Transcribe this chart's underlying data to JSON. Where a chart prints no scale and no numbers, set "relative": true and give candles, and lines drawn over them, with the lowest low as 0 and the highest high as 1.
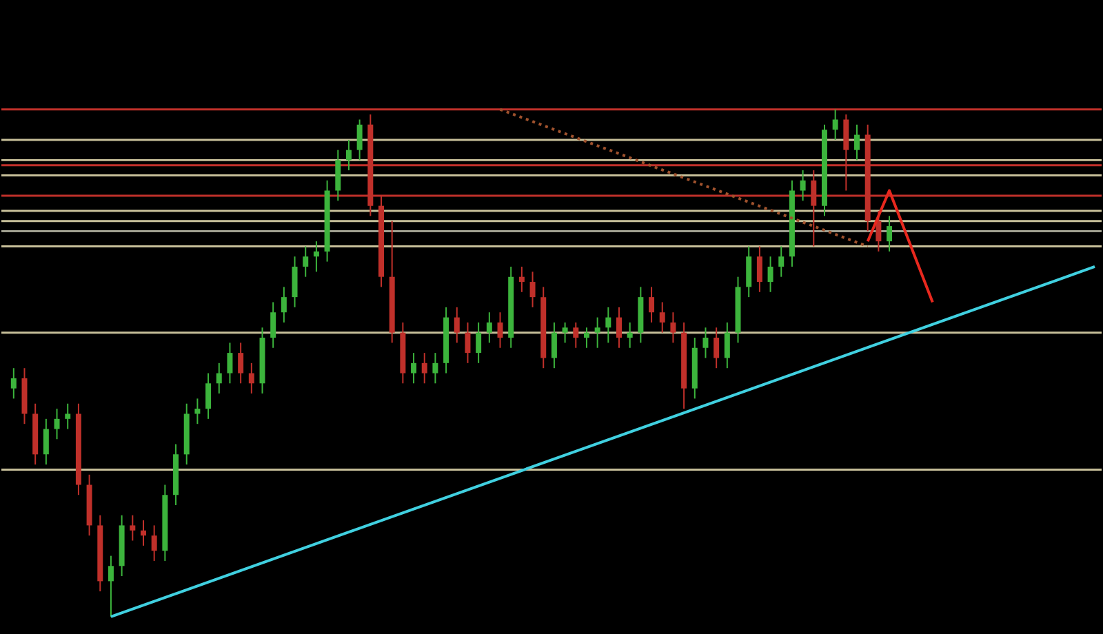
{
  "chart_data": {
    "type": "candlestick",
    "relative": true,
    "tick_labels": false,
    "categories": [
      null,
      null,
      null,
      null,
      null,
      null,
      null,
      null,
      null,
      null,
      null,
      null,
      null,
      null,
      null,
      null,
      null,
      null,
      null,
      null,
      null,
      null,
      null,
      null,
      null,
      null,
      null,
      null,
      null,
      null,
      null,
      null,
      null,
      null,
      null,
      null,
      null,
      null,
      null,
      null,
      null,
      null,
      null,
      null,
      null,
      null,
      null,
      null,
      null,
      null,
      null,
      null,
      null,
      null,
      null,
      null,
      null,
      null,
      null,
      null,
      null,
      null,
      null,
      null,
      null,
      null,
      null,
      null,
      null,
      null,
      null,
      null,
      null,
      null,
      null,
      null,
      null,
      null,
      null,
      null,
      null,
      null,
      null,
      null,
      null,
      null,
      null,
      null,
      null,
      null,
      null,
      null,
      null,
      null,
      null,
      null,
      null,
      null,
      null,
      null,
      null
    ],
    "ohlc": [
      [
        0.45,
        0.49,
        0.43,
        0.47
      ],
      [
        0.47,
        0.49,
        0.38,
        0.4
      ],
      [
        0.4,
        0.42,
        0.3,
        0.32
      ],
      [
        0.32,
        0.39,
        0.3,
        0.37
      ],
      [
        0.37,
        0.41,
        0.35,
        0.39
      ],
      [
        0.39,
        0.42,
        0.37,
        0.4
      ],
      [
        0.4,
        0.42,
        0.24,
        0.26
      ],
      [
        0.26,
        0.28,
        0.16,
        0.18
      ],
      [
        0.18,
        0.2,
        0.05,
        0.07
      ],
      [
        0.07,
        0.12,
        0,
        0.1
      ],
      [
        0.1,
        0.2,
        0.08,
        0.18
      ],
      [
        0.18,
        0.2,
        0.15,
        0.17
      ],
      [
        0.17,
        0.19,
        0.14,
        0.16
      ],
      [
        0.16,
        0.18,
        0.11,
        0.13
      ],
      [
        0.13,
        0.26,
        0.11,
        0.24
      ],
      [
        0.24,
        0.34,
        0.22,
        0.32
      ],
      [
        0.32,
        0.42,
        0.3,
        0.4
      ],
      [
        0.4,
        0.43,
        0.38,
        0.41
      ],
      [
        0.41,
        0.48,
        0.39,
        0.46
      ],
      [
        0.46,
        0.5,
        0.44,
        0.48
      ],
      [
        0.48,
        0.54,
        0.46,
        0.52
      ],
      [
        0.52,
        0.54,
        0.46,
        0.48
      ],
      [
        0.48,
        0.5,
        0.44,
        0.46
      ],
      [
        0.46,
        0.57,
        0.44,
        0.55
      ],
      [
        0.55,
        0.62,
        0.53,
        0.6
      ],
      [
        0.6,
        0.65,
        0.58,
        0.63
      ],
      [
        0.63,
        0.71,
        0.61,
        0.69
      ],
      [
        0.69,
        0.73,
        0.67,
        0.71
      ],
      [
        0.71,
        0.74,
        0.68,
        0.72
      ],
      [
        0.72,
        0.86,
        0.7,
        0.84
      ],
      [
        0.84,
        0.92,
        0.82,
        0.9
      ],
      [
        0.9,
        0.94,
        0.88,
        0.92
      ],
      [
        0.92,
        0.98,
        0.9,
        0.97
      ],
      [
        0.97,
        0.99,
        0.79,
        0.81
      ],
      [
        0.81,
        0.83,
        0.65,
        0.67
      ],
      [
        0.67,
        0.78,
        0.54,
        0.56
      ],
      [
        0.56,
        0.58,
        0.46,
        0.48
      ],
      [
        0.48,
        0.52,
        0.46,
        0.5
      ],
      [
        0.5,
        0.52,
        0.46,
        0.48
      ],
      [
        0.48,
        0.52,
        0.46,
        0.5
      ],
      [
        0.5,
        0.61,
        0.48,
        0.59
      ],
      [
        0.59,
        0.61,
        0.54,
        0.56
      ],
      [
        0.56,
        0.58,
        0.5,
        0.52
      ],
      [
        0.52,
        0.58,
        0.5,
        0.56
      ],
      [
        0.56,
        0.6,
        0.54,
        0.58
      ],
      [
        0.58,
        0.6,
        0.53,
        0.55
      ],
      [
        0.55,
        0.69,
        0.53,
        0.67
      ],
      [
        0.67,
        0.69,
        0.64,
        0.66
      ],
      [
        0.66,
        0.68,
        0.61,
        0.63
      ],
      [
        0.63,
        0.65,
        0.49,
        0.51
      ],
      [
        0.51,
        0.58,
        0.49,
        0.56
      ],
      [
        0.56,
        0.58,
        0.54,
        0.57
      ],
      [
        0.57,
        0.58,
        0.53,
        0.55
      ],
      [
        0.55,
        0.57,
        0.53,
        0.56
      ],
      [
        0.56,
        0.59,
        0.53,
        0.57
      ],
      [
        0.57,
        0.61,
        0.54,
        0.59
      ],
      [
        0.59,
        0.61,
        0.53,
        0.55
      ],
      [
        0.55,
        0.58,
        0.53,
        0.56
      ],
      [
        0.56,
        0.65,
        0.54,
        0.63
      ],
      [
        0.63,
        0.65,
        0.58,
        0.6
      ],
      [
        0.6,
        0.62,
        0.56,
        0.58
      ],
      [
        0.58,
        0.6,
        0.54,
        0.56
      ],
      [
        0.56,
        0.58,
        0.41,
        0.45
      ],
      [
        0.45,
        0.55,
        0.43,
        0.53
      ],
      [
        0.53,
        0.57,
        0.51,
        0.55
      ],
      [
        0.55,
        0.57,
        0.49,
        0.51
      ],
      [
        0.51,
        0.58,
        0.49,
        0.56
      ],
      [
        0.56,
        0.67,
        0.54,
        0.65
      ],
      [
        0.65,
        0.73,
        0.63,
        0.71
      ],
      [
        0.71,
        0.73,
        0.64,
        0.66
      ],
      [
        0.66,
        0.71,
        0.64,
        0.69
      ],
      [
        0.69,
        0.73,
        0.67,
        0.71
      ],
      [
        0.71,
        0.86,
        0.69,
        0.84
      ],
      [
        0.84,
        0.88,
        0.82,
        0.86
      ],
      [
        0.86,
        0.88,
        0.73,
        0.81
      ],
      [
        0.81,
        0.97,
        0.79,
        0.96
      ],
      [
        0.96,
        1,
        0.94,
        0.98
      ],
      [
        0.98,
        0.99,
        0.84,
        0.92
      ],
      [
        0.92,
        0.97,
        0.9,
        0.95
      ],
      [
        0.95,
        0.97,
        0.76,
        0.78
      ],
      [
        0.78,
        0.8,
        0.72,
        0.74
      ],
      [
        0.74,
        0.79,
        0.72,
        0.77
      ],
      null,
      null,
      null,
      null,
      null,
      null,
      null,
      null,
      null,
      null,
      null,
      null,
      null,
      null,
      null,
      null,
      null,
      null,
      null
    ],
    "series": [
      {
        "type": "line",
        "color": "#40d0e0",
        "marker": "none",
        "line_style": "solid",
        "values": [
          null,
          null,
          null,
          null,
          null,
          null,
          null,
          null,
          null,
          0,
          null,
          null,
          null,
          null,
          null,
          null,
          null,
          null,
          null,
          null,
          null,
          null,
          null,
          null,
          null,
          null,
          null,
          null,
          null,
          null,
          null,
          null,
          null,
          null,
          null,
          null,
          null,
          null,
          null,
          null,
          null,
          null,
          null,
          null,
          null,
          null,
          null,
          null,
          null,
          null,
          null,
          null,
          null,
          null,
          null,
          null,
          null,
          null,
          null,
          null,
          null,
          null,
          null,
          null,
          null,
          null,
          null,
          null,
          null,
          null,
          null,
          null,
          null,
          null,
          null,
          null,
          null,
          null,
          null,
          null,
          null,
          null,
          null,
          null,
          null,
          null,
          null,
          null,
          null,
          null,
          null,
          null,
          null,
          null,
          null,
          null,
          null,
          null,
          null,
          null,
          0.69
        ]
      },
      {
        "type": "line",
        "color": "#a0522d",
        "marker": "none",
        "line_style": "dotted",
        "values": [
          null,
          null,
          null,
          null,
          null,
          null,
          null,
          null,
          null,
          null,
          null,
          null,
          null,
          null,
          null,
          null,
          null,
          null,
          null,
          null,
          null,
          null,
          null,
          null,
          null,
          null,
          null,
          null,
          null,
          null,
          null,
          null,
          null,
          null,
          null,
          null,
          null,
          null,
          null,
          null,
          null,
          null,
          null,
          null,
          null,
          1.0,
          null,
          null,
          null,
          null,
          null,
          null,
          null,
          null,
          null,
          null,
          null,
          null,
          null,
          null,
          null,
          null,
          null,
          null,
          null,
          null,
          null,
          null,
          null,
          null,
          null,
          null,
          null,
          null,
          null,
          null,
          null,
          null,
          null,
          0.73,
          null,
          null,
          null,
          null,
          null,
          null,
          null,
          null,
          null,
          null,
          null,
          null,
          null,
          null,
          null,
          null,
          null,
          null,
          null,
          null,
          null
        ]
      },
      {
        "type": "line",
        "color": "#e8281e",
        "marker": "none",
        "line_style": "solid",
        "values": [
          null,
          null,
          null,
          null,
          null,
          null,
          null,
          null,
          null,
          null,
          null,
          null,
          null,
          null,
          null,
          null,
          null,
          null,
          null,
          null,
          null,
          null,
          null,
          null,
          null,
          null,
          null,
          null,
          null,
          null,
          null,
          null,
          null,
          null,
          null,
          null,
          null,
          null,
          null,
          null,
          null,
          null,
          null,
          null,
          null,
          null,
          null,
          null,
          null,
          null,
          null,
          null,
          null,
          null,
          null,
          null,
          null,
          null,
          null,
          null,
          null,
          null,
          null,
          null,
          null,
          null,
          null,
          null,
          null,
          null,
          null,
          null,
          null,
          null,
          null,
          null,
          null,
          null,
          null,
          0.74,
          null,
          0.84,
          null,
          null,
          null,
          0.62,
          null,
          null,
          null,
          null,
          null,
          null,
          null,
          null,
          null,
          null,
          null,
          null,
          null,
          null,
          null
        ]
      }
    ],
    "ref_lines": [
      {
        "axis": "y",
        "value": 1.0,
        "color": "#c0302a"
      },
      {
        "axis": "y",
        "value": 0.89,
        "color": "#c0302a"
      },
      {
        "axis": "y",
        "value": 0.83,
        "color": "#c0302a"
      },
      {
        "axis": "y",
        "value": 0.94,
        "color": "#c8c09a"
      },
      {
        "axis": "y",
        "value": 0.9,
        "color": "#c8c09a"
      },
      {
        "axis": "y",
        "value": 0.87,
        "color": "#c8c09a"
      },
      {
        "axis": "y",
        "value": 0.8,
        "color": "#c8c09a"
      },
      {
        "axis": "y",
        "value": 0.78,
        "color": "#c8c09a"
      },
      {
        "axis": "y",
        "value": 0.76,
        "color": "#a0a090"
      },
      {
        "axis": "y",
        "value": 0.73,
        "color": "#c8c09a"
      },
      {
        "axis": "y",
        "value": 0.56,
        "color": "#c8c09a"
      },
      {
        "axis": "y",
        "value": 0.29,
        "color": "#c8c09a"
      }
    ]
  }
}
